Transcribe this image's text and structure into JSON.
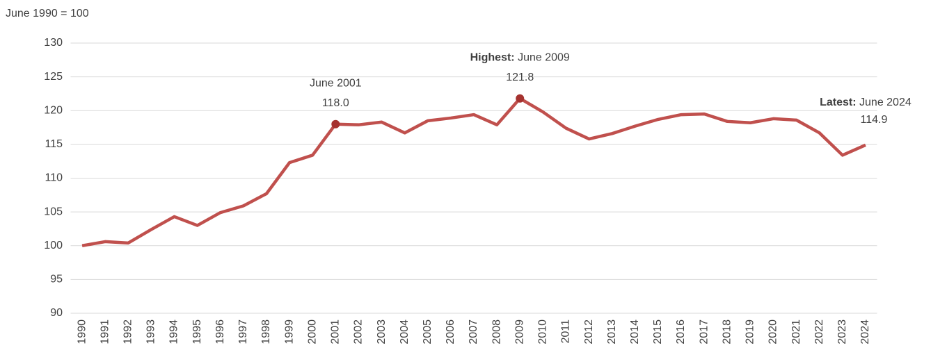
{
  "chart_data": {
    "type": "line",
    "y_axis_label": "June 1990 = 100",
    "categories": [
      "1990",
      "1991",
      "1992",
      "1993",
      "1994",
      "1995",
      "1996",
      "1997",
      "1998",
      "1999",
      "2000",
      "2001",
      "2002",
      "2003",
      "2004",
      "2005",
      "2006",
      "2007",
      "2008",
      "2009",
      "2010",
      "2011",
      "2012",
      "2013",
      "2014",
      "2015",
      "2016",
      "2017",
      "2018",
      "2019",
      "2020",
      "2021",
      "2022",
      "2023",
      "2024"
    ],
    "series": [
      {
        "color": "#c0504d",
        "values": [
          100.0,
          100.6,
          100.4,
          102.4,
          104.3,
          103.0,
          104.9,
          105.9,
          107.7,
          112.3,
          113.4,
          118.0,
          117.9,
          118.3,
          116.7,
          118.5,
          118.9,
          119.4,
          117.9,
          121.8,
          119.8,
          117.4,
          115.8,
          116.6,
          117.7,
          118.7,
          119.4,
          119.5,
          118.4,
          118.2,
          118.8,
          118.6,
          116.7,
          113.4,
          114.9
        ],
        "value_labels": [
          null,
          null,
          null,
          null,
          null,
          null,
          null,
          null,
          null,
          null,
          null,
          "118.0",
          null,
          null,
          null,
          null,
          null,
          null,
          null,
          "121.8",
          null,
          null,
          null,
          null,
          null,
          null,
          null,
          null,
          null,
          null,
          null,
          null,
          null,
          null,
          "114.9"
        ]
      }
    ],
    "annotations": [
      {
        "text": "June 2001"
      },
      {
        "prefix": "Highest:",
        "text": "June 2009"
      },
      {
        "prefix": "Latest:",
        "text": "June 2024"
      }
    ],
    "marker_color": "#a5322f",
    "ylim": [
      90,
      130
    ],
    "yticks": [
      90,
      95,
      100,
      105,
      110,
      115,
      120,
      125,
      130
    ],
    "grid": true
  }
}
